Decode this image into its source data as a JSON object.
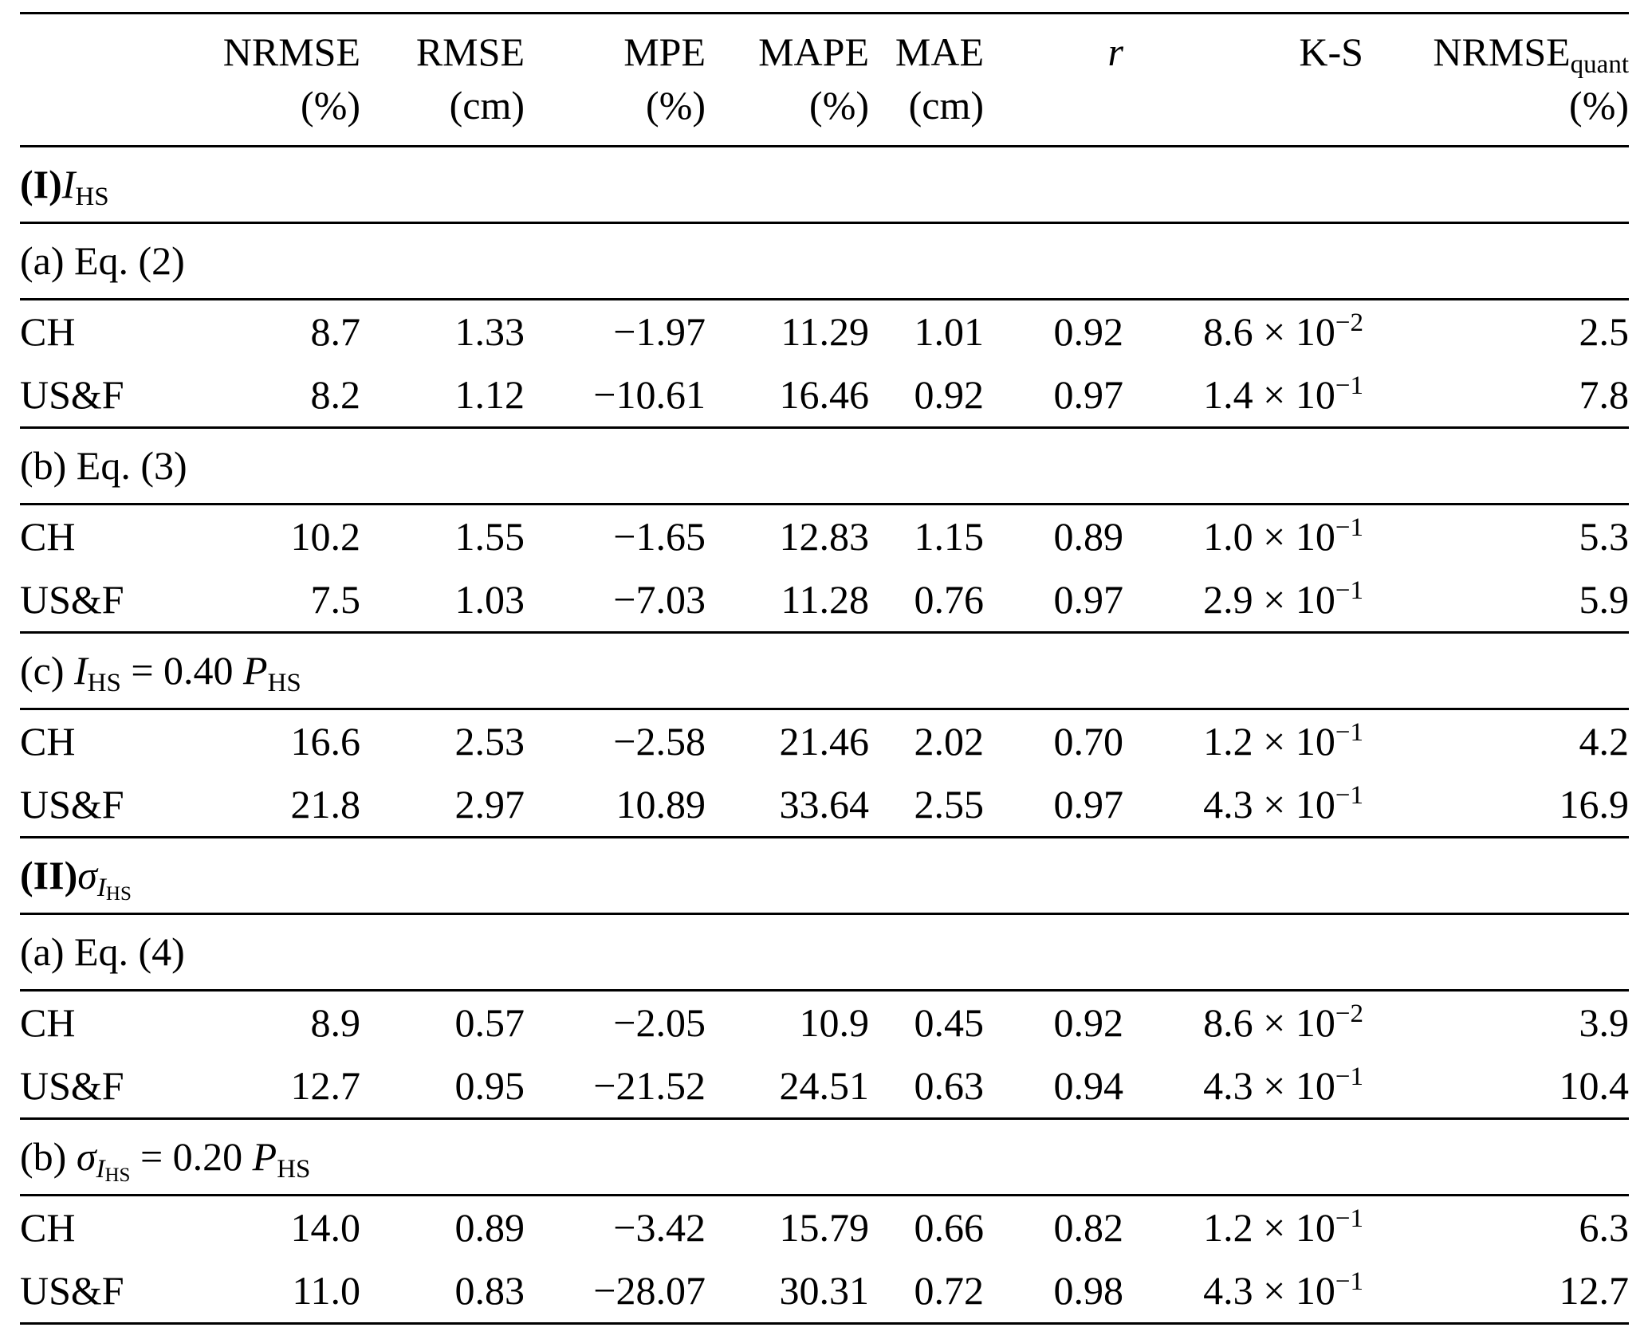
{
  "table": {
    "columns": [
      {
        "name": "",
        "unit": ""
      },
      {
        "name": "NRMSE",
        "unit": "(%)"
      },
      {
        "name": "RMSE",
        "unit": "(cm)"
      },
      {
        "name": "MPE",
        "unit": "(%)"
      },
      {
        "name": "MAPE",
        "unit": "(%)"
      },
      {
        "name": "MAE",
        "unit": "(cm)"
      },
      {
        "name": "r",
        "unit": ""
      },
      {
        "name": "K-S",
        "unit": ""
      },
      {
        "name": "NRMSE",
        "subscript": "quant",
        "unit": "(%)"
      }
    ],
    "sections": [
      {
        "title": [
          {
            "t": "(I)",
            "s": "b"
          },
          {
            "t": "I",
            "s": "i"
          },
          {
            "t": "HS",
            "s": "sub"
          }
        ]
      },
      {
        "title": [
          {
            "t": "(a) Eq. (2)"
          }
        ],
        "rows": [
          {
            "label": "CH",
            "nrmse": "8.7",
            "rmse": "1.33",
            "mpe": "−1.97",
            "mape": "11.29",
            "mae": "1.01",
            "r": "0.92",
            "ks_mant": "8.6 × 10",
            "ks_exp": "−2",
            "nrmse_quant": "2.5"
          },
          {
            "label": "US&F",
            "nrmse": "8.2",
            "rmse": "1.12",
            "mpe": "−10.61",
            "mape": "16.46",
            "mae": "0.92",
            "r": "0.97",
            "ks_mant": "1.4 × 10",
            "ks_exp": "−1",
            "nrmse_quant": "7.8"
          }
        ]
      },
      {
        "title": [
          {
            "t": "(b) Eq. (3)"
          }
        ],
        "rows": [
          {
            "label": "CH",
            "nrmse": "10.2",
            "rmse": "1.55",
            "mpe": "−1.65",
            "mape": "12.83",
            "mae": "1.15",
            "r": "0.89",
            "ks_mant": "1.0 × 10",
            "ks_exp": "−1",
            "nrmse_quant": "5.3"
          },
          {
            "label": "US&F",
            "nrmse": "7.5",
            "rmse": "1.03",
            "mpe": "−7.03",
            "mape": "11.28",
            "mae": "0.76",
            "r": "0.97",
            "ks_mant": "2.9 × 10",
            "ks_exp": "−1",
            "nrmse_quant": "5.9"
          }
        ]
      },
      {
        "title": [
          {
            "t": "(c) "
          },
          {
            "t": "I",
            "s": "i"
          },
          {
            "t": "HS",
            "s": "sub"
          },
          {
            "t": " = 0.40 "
          },
          {
            "t": "P",
            "s": "i"
          },
          {
            "t": "HS",
            "s": "sub"
          }
        ],
        "rows": [
          {
            "label": "CH",
            "nrmse": "16.6",
            "rmse": "2.53",
            "mpe": "−2.58",
            "mape": "21.46",
            "mae": "2.02",
            "r": "0.70",
            "ks_mant": "1.2 × 10",
            "ks_exp": "−1",
            "nrmse_quant": "4.2"
          },
          {
            "label": "US&F",
            "nrmse": "21.8",
            "rmse": "2.97",
            "mpe": "10.89",
            "mape": "33.64",
            "mae": "2.55",
            "r": "0.97",
            "ks_mant": "4.3 × 10",
            "ks_exp": "−1",
            "nrmse_quant": "16.9"
          }
        ]
      },
      {
        "title": [
          {
            "t": "(II)",
            "s": "b"
          },
          {
            "t": "σ",
            "s": "i"
          },
          {
            "t": "I",
            "s": "isub"
          },
          {
            "t": "HS",
            "s": "subsub"
          }
        ]
      },
      {
        "title": [
          {
            "t": "(a) Eq. (4)"
          }
        ],
        "rows": [
          {
            "label": "CH",
            "nrmse": "8.9",
            "rmse": "0.57",
            "mpe": "−2.05",
            "mape": "10.9",
            "mae": "0.45",
            "r": "0.92",
            "ks_mant": "8.6 × 10",
            "ks_exp": "−2",
            "nrmse_quant": "3.9"
          },
          {
            "label": "US&F",
            "nrmse": "12.7",
            "rmse": "0.95",
            "mpe": "−21.52",
            "mape": "24.51",
            "mae": "0.63",
            "r": "0.94",
            "ks_mant": "4.3 × 10",
            "ks_exp": "−1",
            "nrmse_quant": "10.4"
          }
        ]
      },
      {
        "title": [
          {
            "t": "(b) "
          },
          {
            "t": "σ",
            "s": "i"
          },
          {
            "t": "I",
            "s": "isub"
          },
          {
            "t": "HS",
            "s": "subsub"
          },
          {
            "t": " = 0.20 "
          },
          {
            "t": "P",
            "s": "i"
          },
          {
            "t": "HS",
            "s": "sub"
          }
        ],
        "rows": [
          {
            "label": "CH",
            "nrmse": "14.0",
            "rmse": "0.89",
            "mpe": "−3.42",
            "mape": "15.79",
            "mae": "0.66",
            "r": "0.82",
            "ks_mant": "1.2 × 10",
            "ks_exp": "−1",
            "nrmse_quant": "6.3"
          },
          {
            "label": "US&F",
            "nrmse": "11.0",
            "rmse": "0.83",
            "mpe": "−28.07",
            "mape": "30.31",
            "mae": "0.72",
            "r": "0.98",
            "ks_mant": "4.3 × 10",
            "ks_exp": "−1",
            "nrmse_quant": "12.7"
          }
        ]
      }
    ]
  }
}
